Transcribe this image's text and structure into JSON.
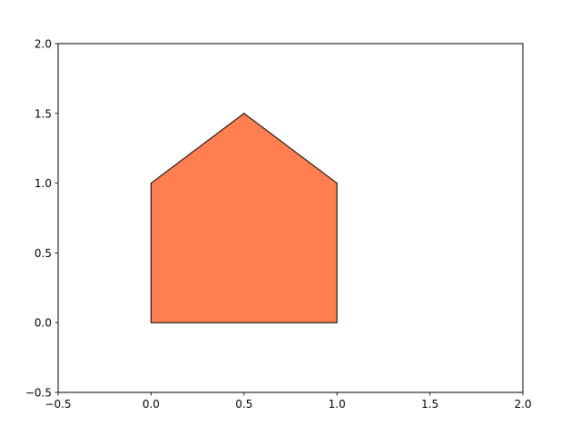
{
  "chart_data": {
    "type": "polygon",
    "title": "",
    "xlabel": "",
    "ylabel": "",
    "xlim": [
      -0.5,
      2.0
    ],
    "ylim": [
      -0.5,
      2.0
    ],
    "grid": false,
    "xticks": [
      -0.5,
      0.0,
      0.5,
      1.0,
      1.5,
      2.0
    ],
    "yticks": [
      -0.5,
      0.0,
      0.5,
      1.0,
      1.5,
      2.0
    ],
    "xtick_labels": [
      "−0.5",
      "0.0",
      "0.5",
      "1.0",
      "1.5",
      "2.0"
    ],
    "ytick_labels": [
      "−0.5",
      "0.0",
      "0.5",
      "1.0",
      "1.5",
      "2.0"
    ],
    "polygon": {
      "vertices": [
        [
          0,
          0
        ],
        [
          1,
          0
        ],
        [
          1,
          1
        ],
        [
          0.5,
          1.5
        ],
        [
          0,
          1
        ]
      ],
      "fill_color": "#ff7f50",
      "edge_color": "#000000"
    }
  }
}
